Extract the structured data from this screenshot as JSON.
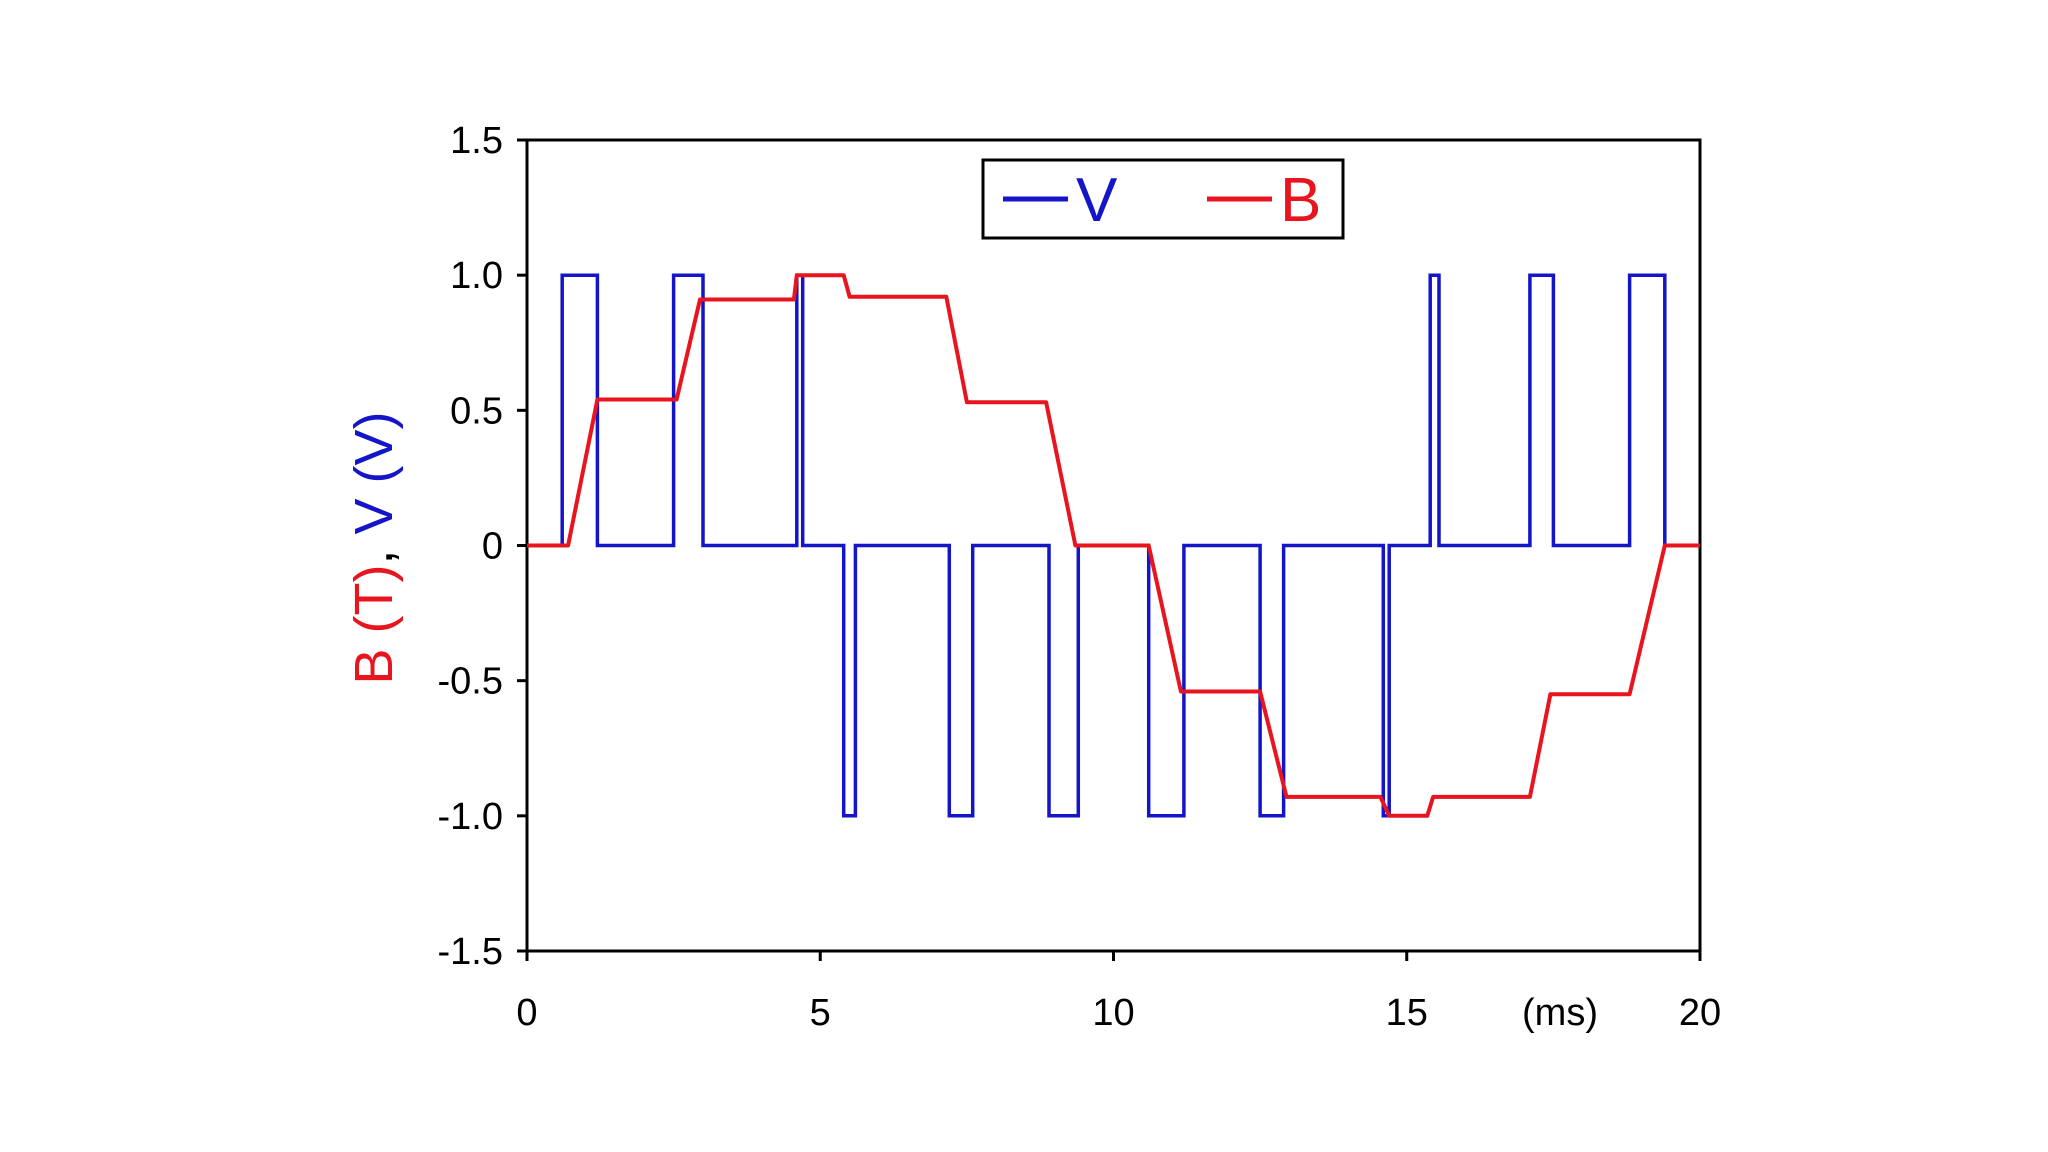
{
  "chart_data": {
    "type": "line",
    "xlabel": "(ms)",
    "ylabel": {
      "parts": [
        {
          "text": "B (T)",
          "color": "#e8141e"
        },
        {
          "text": ", ",
          "color": "#000000"
        },
        {
          "text": "V (V)",
          "color": "#1414c8"
        }
      ]
    },
    "xlim": [
      0,
      20
    ],
    "ylim": [
      -1.5,
      1.5
    ],
    "x_ticks": [
      0,
      5,
      10,
      15,
      20
    ],
    "x_tick_labels": [
      "0",
      "5",
      "10",
      "15",
      "20"
    ],
    "y_ticks": [
      -1.5,
      -1.0,
      -0.5,
      0,
      0.5,
      1.0,
      1.5
    ],
    "y_tick_labels": [
      "-1.5",
      "-1.0",
      "-0.5",
      "0",
      "0.5",
      "1.0",
      "1.5"
    ],
    "grid": false,
    "legend": {
      "placement": "top-center"
    },
    "series": [
      {
        "name": "V",
        "color": "#1414c8",
        "x": [
          0,
          0.6,
          0.6,
          1.2,
          1.2,
          2.5,
          2.5,
          3.0,
          3.0,
          4.6,
          4.6,
          4.7,
          4.7,
          5.4,
          5.4,
          5.6,
          5.6,
          7.2,
          7.2,
          7.6,
          7.6,
          8.9,
          8.9,
          9.4,
          9.4,
          10.6,
          10.6,
          11.2,
          11.2,
          12.5,
          12.5,
          12.9,
          12.9,
          14.6,
          14.6,
          14.7,
          14.7,
          15.4,
          15.4,
          15.55,
          15.55,
          17.1,
          17.1,
          17.5,
          17.5,
          18.8,
          18.8,
          19.4,
          19.4,
          20
        ],
        "y": [
          0,
          0,
          1,
          1,
          0,
          0,
          1,
          1,
          0,
          0,
          1,
          1,
          0,
          0,
          -1,
          -1,
          0,
          0,
          -1,
          -1,
          0,
          0,
          -1,
          -1,
          0,
          0,
          -1,
          -1,
          0,
          0,
          -1,
          -1,
          0,
          0,
          -1,
          -1,
          0,
          0,
          1,
          1,
          0,
          0,
          1,
          1,
          0,
          0,
          1,
          1,
          0,
          0
        ]
      },
      {
        "name": "B",
        "color": "#e8141e",
        "x": [
          0,
          0.7,
          1.2,
          2.55,
          2.95,
          4.55,
          4.6,
          5.4,
          5.5,
          7.15,
          7.5,
          8.85,
          9.35,
          10.6,
          11.15,
          12.5,
          12.95,
          14.55,
          14.7,
          15.35,
          15.45,
          17.1,
          17.45,
          18.8,
          19.4,
          20
        ],
        "y": [
          0,
          0,
          0.54,
          0.54,
          0.91,
          0.91,
          1.0,
          1.0,
          0.92,
          0.92,
          0.53,
          0.53,
          0,
          0,
          -0.54,
          -0.54,
          -0.93,
          -0.93,
          -1.0,
          -1.0,
          -0.93,
          -0.93,
          -0.55,
          -0.55,
          0,
          0
        ]
      }
    ]
  }
}
